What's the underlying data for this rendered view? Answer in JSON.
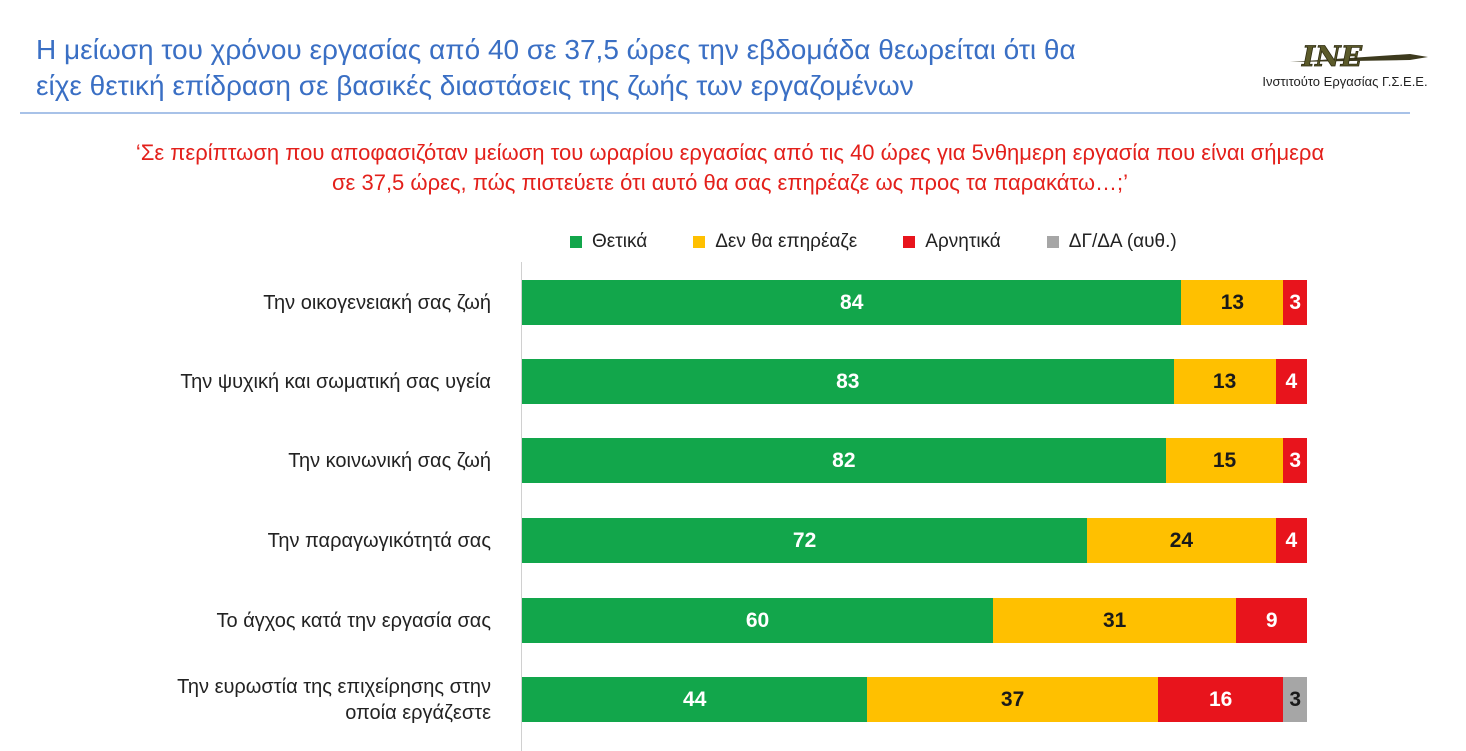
{
  "header": {
    "title_line1": "Η μείωση του χρόνου εργασίας από 40 σε 37,5 ώρες την εβδομάδα θεωρείται ότι θα",
    "title_line2": "είχε θετική επίδραση σε βασικές διαστάσεις της ζωής των εργαζομένων",
    "logo_text": "Ινστιτούτο Εργασίας Γ.Σ.Ε.Ε.",
    "logo_letters": "INE"
  },
  "question": {
    "line1": "‘Σε περίπτωση που αποφασιζόταν μείωση του ωραρίου εργασίας από τις 40 ώρες για 5νθημερη εργασία που είναι σήμερα",
    "line2": "σε 37,5 ώρες, πώς πιστεύετε ότι αυτό θα σας επηρέαζε ως προς τα παρακάτω…;’"
  },
  "chart_data": {
    "type": "bar",
    "orientation": "horizontal",
    "stacked": true,
    "categories": [
      "Την οικογενειακή σας ζωή",
      "Την ψυχική και σωματική σας υγεία",
      "Την κοινωνική σας ζωή",
      "Την παραγωγικότητά σας",
      "Το άγχος κατά την εργασία σας",
      "Την ευρωστία της επιχείρησης στην οποία εργάζεστε"
    ],
    "category_lines": [
      [
        "Την οικογενειακή σας ζωή"
      ],
      [
        "Την ψυχική και σωματική σας υγεία"
      ],
      [
        "Την κοινωνική σας ζωή"
      ],
      [
        "Την παραγωγικότητά σας"
      ],
      [
        "Το άγχος κατά την εργασία σας"
      ],
      [
        "Την ευρωστία της επιχείρησης στην",
        "οποία εργάζεστε"
      ]
    ],
    "series": [
      {
        "name": "Θετικά",
        "color": "#12a64b",
        "label_color": "#ffffff",
        "values": [
          84,
          83,
          82,
          72,
          60,
          44
        ]
      },
      {
        "name": "Δεν θα επηρέαζε",
        "color": "#ffc000",
        "label_color": "#1a1a1a",
        "values": [
          13,
          13,
          15,
          24,
          31,
          37
        ]
      },
      {
        "name": "Αρνητικά",
        "color": "#e8141c",
        "label_color": "#ffffff",
        "values": [
          3,
          4,
          3,
          4,
          9,
          16
        ]
      },
      {
        "name": "ΔΓ/ΔΑ (αυθ.)",
        "color": "#a6a6a6",
        "label_color": "#1a1a1a",
        "values": [
          0,
          0,
          0,
          0,
          0,
          3
        ]
      }
    ],
    "xlim": [
      0,
      100
    ],
    "legend_position": "top"
  }
}
